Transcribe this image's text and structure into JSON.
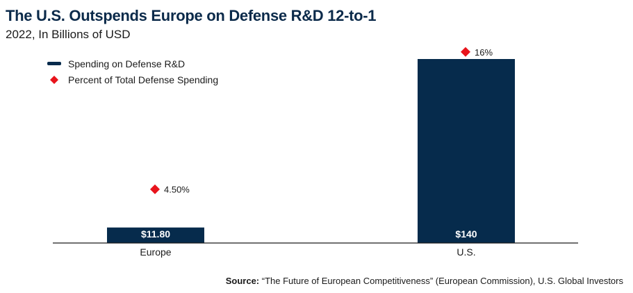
{
  "title": "The U.S. Outspends Europe on Defense R&D 12-to-1",
  "subtitle": "2022, In Billions of USD",
  "source": {
    "label": "Source:",
    "text": "“The Future of European Competitiveness” (European Commission), U.S. Global Investors"
  },
  "colors": {
    "bar": "#062b4c",
    "marker": "#e8141c",
    "title": "#0b2a4a"
  },
  "chart_data": {
    "type": "bar",
    "categories": [
      "Europe",
      "U.S."
    ],
    "series": [
      {
        "name": "Spending on Defense R&D",
        "values": [
          11.8,
          140
        ],
        "data_labels": [
          "$11.80",
          "$140"
        ]
      },
      {
        "name": "Percent of Total Defense Spending",
        "values": [
          4.5,
          16
        ],
        "data_labels": [
          "4.50%",
          "16%"
        ]
      }
    ],
    "grid": false,
    "legend": "top-left"
  }
}
